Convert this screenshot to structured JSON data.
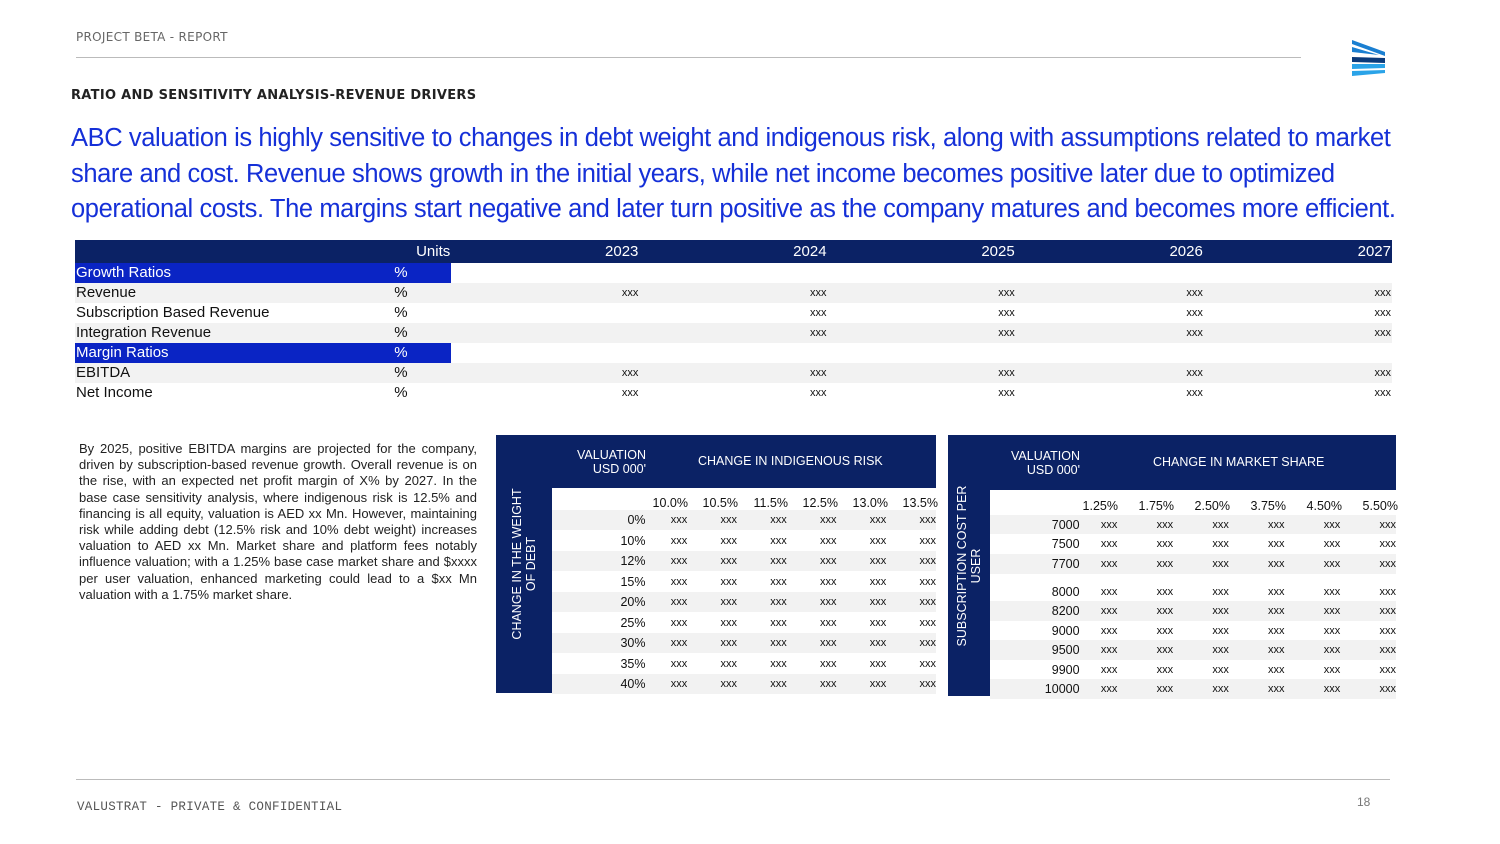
{
  "header": {
    "project": "PROJECT BETA - REPORT",
    "section": "RATIO AND SENSITIVITY ANALYSIS-REVENUE DRIVERS",
    "logo": "chevron-stripes-logo",
    "headline": "ABC valuation is highly sensitive to changes in debt weight and indigenous risk, along with assumptions related to market share and cost. Revenue shows growth in the initial years, while net income becomes positive later due to optimized operational costs. The margins start negative and later turn positive as the company matures and becomes more efficient."
  },
  "ratio_table": {
    "units_header": "Units",
    "years": [
      "2023",
      "2024",
      "2025",
      "2026",
      "2027"
    ],
    "rows": [
      {
        "label": "Growth Ratios",
        "unit": "%",
        "values": [
          "",
          "",
          "",
          "",
          ""
        ],
        "section": true
      },
      {
        "label": "Revenue",
        "unit": "%",
        "values": [
          "xxx",
          "xxx",
          "xxx",
          "xxx",
          "xxx"
        ]
      },
      {
        "label": "Subscription Based Revenue",
        "unit": "%",
        "values": [
          "",
          "xxx",
          "xxx",
          "xxx",
          "xxx"
        ]
      },
      {
        "label": "Integration Revenue",
        "unit": "%",
        "values": [
          "",
          "xxx",
          "xxx",
          "xxx",
          "xxx"
        ]
      },
      {
        "label": "Margin Ratios",
        "unit": "%",
        "values": [
          "",
          "",
          "",
          "",
          ""
        ],
        "section": true
      },
      {
        "label": "EBITDA",
        "unit": "%",
        "values": [
          "xxx",
          "xxx",
          "xxx",
          "xxx",
          "xxx"
        ]
      },
      {
        "label": "Net Income",
        "unit": "%",
        "values": [
          "xxx",
          "xxx",
          "xxx",
          "xxx",
          "xxx"
        ]
      }
    ]
  },
  "paragraph": "By 2025, positive EBITDA margins are projected for the company, driven by subscription-based revenue growth. Overall revenue is on the rise, with an expected net profit margin of X% by 2027. In the base case sensitivity analysis, where indigenous risk is 12.5% and financing is all equity, valuation is AED xx Mn. However, maintaining risk while adding debt (12.5% risk and 10% debt weight) increases valuation to AED xx Mn. Market share and platform fees notably influence valuation; with a 1.25% base case market share and $xxxx per user valuation, enhanced marketing could lead to a $xx Mn valuation with a 1.75% market share.",
  "sens1": {
    "value_label": "VALUATION\nUSD 000'",
    "col_title": "CHANGE IN INDIGENOUS RISK",
    "row_title": "CHANGE IN THE WEIGHT\nOF DEBT",
    "cols": [
      "10.0%",
      "10.5%",
      "11.5%",
      "12.5%",
      "13.0%",
      "13.5%"
    ],
    "rows": [
      "0%",
      "10%",
      "12%",
      "15%",
      "20%",
      "25%",
      "30%",
      "35%",
      "40%"
    ],
    "cell": "xxx"
  },
  "sens2": {
    "value_label": "VALUATION\nUSD 000'",
    "col_title": "CHANGE IN MARKET SHARE",
    "row_title": "SUBSCRIPTION COST PER\nUSER",
    "cols": [
      "1.25%",
      "1.75%",
      "2.50%",
      "3.75%",
      "4.50%",
      "5.50%"
    ],
    "rows": [
      "7000",
      "7500",
      "7700",
      "8000",
      "8200",
      "9000",
      "9500",
      "9900",
      "10000"
    ],
    "cell": "xxx"
  },
  "footer": {
    "text": "VALUSTRAT - PRIVATE & CONFIDENTIAL",
    "page": "18"
  },
  "colors": {
    "navy": "#0b2265",
    "accent_blue": "#1530d8",
    "section_blue": "#0a24c4"
  }
}
